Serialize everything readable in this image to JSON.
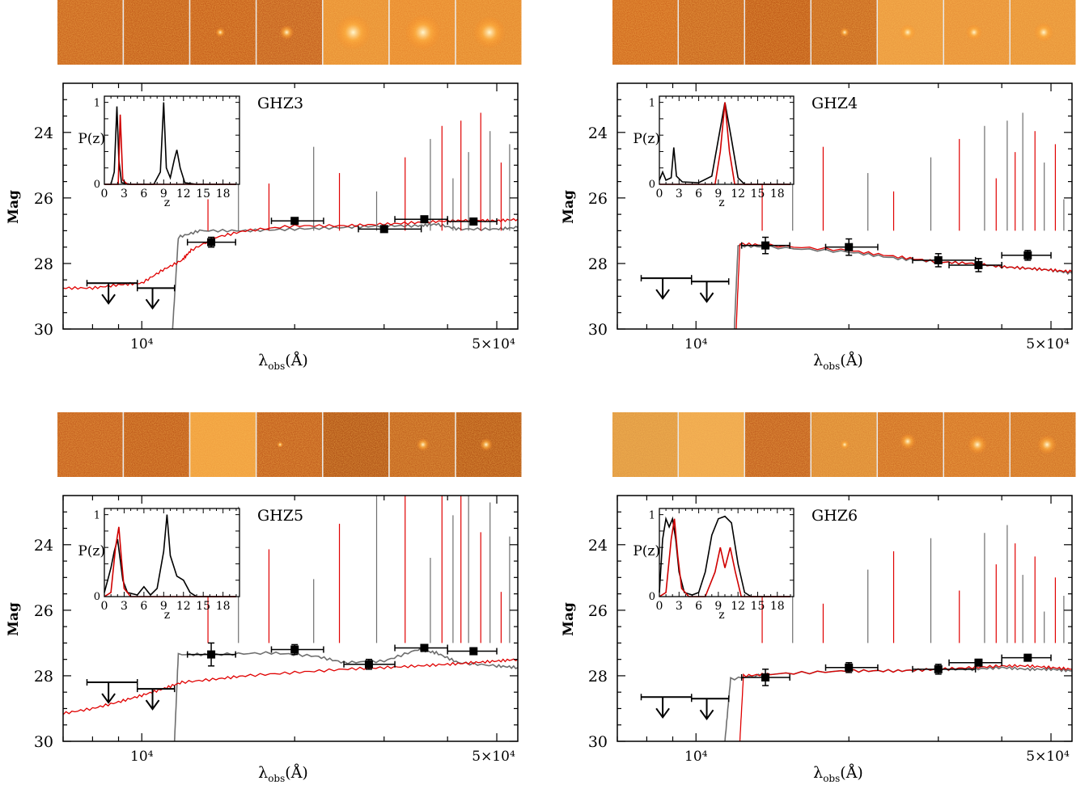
{
  "figure": {
    "y_axis_label": "Mag",
    "x_axis_label_main": "λ",
    "x_axis_label_sub": "obs",
    "x_axis_label_unit": "(Å)",
    "x_tick_labels": [
      "10⁴",
      "5×10⁴"
    ],
    "y_tick_labels": [
      "24",
      "26",
      "28",
      "30"
    ],
    "inset_y_label": "P(z)",
    "inset_x_label": "z",
    "inset_x_tick_labels": [
      "0",
      "3",
      "6",
      "9",
      "12",
      "15",
      "18"
    ],
    "inset_y_tick_labels": [
      "0",
      "1"
    ],
    "colors": {
      "data": "#000000",
      "best_fit_highz": "#e00000",
      "best_fit_lowz": "#6e6e6e",
      "pz_total": "#000000",
      "pz_highz": "#d00000"
    }
  },
  "chart_data": [
    {
      "type": "scatter",
      "title": "GHZ3",
      "xscale": "log",
      "xlim": [
        7000,
        55000
      ],
      "ylim": [
        30,
        22.5
      ],
      "yticks": [
        24,
        26,
        28,
        30
      ],
      "detections": [
        {
          "x": 13700,
          "y": 27.35,
          "xerr": [
            12300,
            15300
          ],
          "yerr": 0.15
        },
        {
          "x": 20000,
          "y": 26.7,
          "xerr": [
            18000,
            22800
          ],
          "yerr": 0.06
        },
        {
          "x": 30000,
          "y": 26.95,
          "xerr": [
            26700,
            35500
          ],
          "yerr": 0.05
        },
        {
          "x": 36000,
          "y": 26.65,
          "xerr": [
            31500,
            40000
          ],
          "yerr": 0.06
        },
        {
          "x": 45000,
          "y": 26.72,
          "xerr": [
            40000,
            50000
          ],
          "yerr": 0.08
        }
      ],
      "upper_limits": [
        {
          "x": 8600,
          "y": 28.6,
          "xerr": [
            7800,
            9800
          ]
        },
        {
          "x": 10500,
          "y": 28.75,
          "xerr": [
            9800,
            11600
          ]
        }
      ],
      "model_highz": [
        [
          7000,
          28.75
        ],
        [
          8000,
          28.75
        ],
        [
          9000,
          28.65
        ],
        [
          10000,
          28.6
        ],
        [
          11000,
          28.2
        ],
        [
          12000,
          27.9
        ],
        [
          12500,
          27.6
        ],
        [
          14000,
          27.2
        ],
        [
          16000,
          27.0
        ],
        [
          20000,
          26.85
        ],
        [
          25000,
          26.85
        ],
        [
          30000,
          26.8
        ],
        [
          35000,
          26.75
        ],
        [
          40000,
          26.7
        ],
        [
          45000,
          26.68
        ],
        [
          50000,
          26.7
        ],
        [
          55000,
          26.65
        ]
      ],
      "model_lowz": [
        [
          11500,
          30.0
        ],
        [
          11800,
          27.2
        ],
        [
          13000,
          27.0
        ],
        [
          16000,
          27.0
        ],
        [
          20000,
          26.95
        ],
        [
          25000,
          26.9
        ],
        [
          30000,
          26.85
        ],
        [
          35000,
          26.85
        ],
        [
          38000,
          26.8
        ],
        [
          42000,
          26.95
        ],
        [
          50000,
          26.95
        ],
        [
          55000,
          26.9
        ]
      ],
      "pz_total": [
        [
          0,
          0
        ],
        [
          1.0,
          0
        ],
        [
          1.5,
          0.15
        ],
        [
          1.9,
          0.95
        ],
        [
          2.2,
          0.3
        ],
        [
          2.6,
          0.02
        ],
        [
          4,
          0
        ],
        [
          7.5,
          0
        ],
        [
          8.5,
          0.15
        ],
        [
          9.0,
          1.0
        ],
        [
          9.4,
          0.2
        ],
        [
          10,
          0.08
        ],
        [
          10.6,
          0.3
        ],
        [
          11.0,
          0.42
        ],
        [
          11.5,
          0.2
        ],
        [
          12.2,
          0.02
        ],
        [
          14,
          0
        ],
        [
          20,
          0
        ]
      ],
      "pz_highz": [
        [
          0,
          0
        ],
        [
          2.1,
          0
        ],
        [
          2.4,
          0.85
        ],
        [
          2.8,
          0.05
        ],
        [
          3.5,
          0
        ],
        [
          20,
          0
        ]
      ]
    },
    {
      "type": "scatter",
      "title": "GHZ4",
      "xscale": "log",
      "xlim": [
        7000,
        55000
      ],
      "ylim": [
        30,
        22.5
      ],
      "yticks": [
        24,
        26,
        28,
        30
      ],
      "detections": [
        {
          "x": 13700,
          "y": 27.45,
          "xerr": [
            12300,
            15300
          ],
          "yerr": 0.25
        },
        {
          "x": 20000,
          "y": 27.5,
          "xerr": [
            18000,
            22800
          ],
          "yerr": 0.25
        },
        {
          "x": 30000,
          "y": 27.9,
          "xerr": [
            26700,
            35500
          ],
          "yerr": 0.2
        },
        {
          "x": 36000,
          "y": 28.05,
          "xerr": [
            31500,
            40000
          ],
          "yerr": 0.2
        },
        {
          "x": 45000,
          "y": 27.75,
          "xerr": [
            40000,
            50000
          ],
          "yerr": 0.15
        }
      ],
      "upper_limits": [
        {
          "x": 8600,
          "y": 28.45,
          "xerr": [
            7800,
            9800
          ]
        },
        {
          "x": 10500,
          "y": 28.55,
          "xerr": [
            9800,
            11600
          ]
        }
      ],
      "model_highz": [
        [
          12000,
          30.0
        ],
        [
          12200,
          27.4
        ],
        [
          14000,
          27.45
        ],
        [
          20000,
          27.6
        ],
        [
          25000,
          27.8
        ],
        [
          30000,
          27.95
        ],
        [
          35000,
          28.0
        ],
        [
          40000,
          28.1
        ],
        [
          45000,
          28.15
        ],
        [
          50000,
          28.2
        ],
        [
          55000,
          28.25
        ]
      ],
      "model_lowz": [
        [
          11900,
          30.0
        ],
        [
          12100,
          27.45
        ],
        [
          14000,
          27.5
        ],
        [
          20000,
          27.65
        ],
        [
          25000,
          27.85
        ],
        [
          30000,
          27.95
        ],
        [
          35000,
          28.0
        ],
        [
          40000,
          28.1
        ],
        [
          45000,
          28.15
        ],
        [
          50000,
          28.2
        ],
        [
          55000,
          28.3
        ]
      ],
      "pz_total": [
        [
          0,
          0.05
        ],
        [
          0.5,
          0.15
        ],
        [
          1.0,
          0.05
        ],
        [
          1.8,
          0.08
        ],
        [
          2.2,
          0.45
        ],
        [
          2.6,
          0.1
        ],
        [
          3.5,
          0.03
        ],
        [
          6,
          0.02
        ],
        [
          8,
          0.1
        ],
        [
          9,
          0.55
        ],
        [
          10,
          1.0
        ],
        [
          11,
          0.55
        ],
        [
          12,
          0.08
        ],
        [
          13,
          0
        ],
        [
          20,
          0
        ]
      ],
      "pz_highz": [
        [
          0,
          0
        ],
        [
          8.5,
          0
        ],
        [
          9.3,
          0.4
        ],
        [
          10,
          1.0
        ],
        [
          10.7,
          0.4
        ],
        [
          11.5,
          0
        ],
        [
          20,
          0
        ]
      ]
    },
    {
      "type": "scatter",
      "title": "GHZ5",
      "xscale": "log",
      "xlim": [
        7000,
        55000
      ],
      "ylim": [
        30,
        22.5
      ],
      "yticks": [
        24,
        26,
        28,
        30
      ],
      "detections": [
        {
          "x": 13700,
          "y": 27.35,
          "xerr": [
            12300,
            15300
          ],
          "yerr": 0.35
        },
        {
          "x": 20000,
          "y": 27.2,
          "xerr": [
            18000,
            22800
          ],
          "yerr": 0.15
        },
        {
          "x": 28000,
          "y": 27.65,
          "xerr": [
            25000,
            31500
          ],
          "yerr": 0.15
        },
        {
          "x": 36000,
          "y": 27.15,
          "xerr": [
            31500,
            40000
          ],
          "yerr": 0.1
        },
        {
          "x": 45000,
          "y": 27.25,
          "xerr": [
            40000,
            50000
          ],
          "yerr": 0.1
        }
      ],
      "upper_limits": [
        {
          "x": 8600,
          "y": 28.2,
          "xerr": [
            7800,
            9800
          ]
        },
        {
          "x": 10500,
          "y": 28.4,
          "xerr": [
            9800,
            11600
          ]
        }
      ],
      "model_highz": [
        [
          7000,
          29.15
        ],
        [
          8000,
          29.0
        ],
        [
          9000,
          28.8
        ],
        [
          10000,
          28.6
        ],
        [
          11000,
          28.4
        ],
        [
          12000,
          28.2
        ],
        [
          14000,
          28.1
        ],
        [
          16000,
          28.0
        ],
        [
          20000,
          27.9
        ],
        [
          25000,
          27.8
        ],
        [
          30000,
          27.75
        ],
        [
          35000,
          27.7
        ],
        [
          40000,
          27.65
        ],
        [
          45000,
          27.6
        ],
        [
          50000,
          27.55
        ],
        [
          55000,
          27.5
        ]
      ],
      "model_lowz": [
        [
          11600,
          30.0
        ],
        [
          11800,
          27.35
        ],
        [
          14000,
          27.35
        ],
        [
          18000,
          27.3
        ],
        [
          22000,
          27.4
        ],
        [
          25000,
          27.6
        ],
        [
          30000,
          27.55
        ],
        [
          35000,
          27.2
        ],
        [
          38000,
          27.3
        ],
        [
          42000,
          27.6
        ],
        [
          50000,
          27.7
        ],
        [
          55000,
          27.75
        ]
      ],
      "pz_total": [
        [
          0,
          0.05
        ],
        [
          0.5,
          0.2
        ],
        [
          1.0,
          0.35
        ],
        [
          1.5,
          0.55
        ],
        [
          2.0,
          0.7
        ],
        [
          2.4,
          0.45
        ],
        [
          2.8,
          0.2
        ],
        [
          3.5,
          0.05
        ],
        [
          5,
          0.02
        ],
        [
          6,
          0.12
        ],
        [
          7,
          0.02
        ],
        [
          8,
          0.1
        ],
        [
          9,
          0.55
        ],
        [
          9.5,
          1.0
        ],
        [
          10,
          0.5
        ],
        [
          11,
          0.25
        ],
        [
          12,
          0.2
        ],
        [
          13,
          0.05
        ],
        [
          14,
          0
        ],
        [
          20,
          0
        ]
      ],
      "pz_highz": [
        [
          0,
          0
        ],
        [
          1.0,
          0.05
        ],
        [
          1.7,
          0.6
        ],
        [
          2.2,
          0.85
        ],
        [
          2.6,
          0.45
        ],
        [
          3.0,
          0.1
        ],
        [
          4.0,
          0
        ],
        [
          20,
          0
        ]
      ]
    },
    {
      "type": "scatter",
      "title": "GHZ6",
      "xscale": "log",
      "xlim": [
        7000,
        55000
      ],
      "ylim": [
        30,
        22.5
      ],
      "yticks": [
        24,
        26,
        28,
        30
      ],
      "detections": [
        {
          "x": 13700,
          "y": 28.05,
          "xerr": [
            12300,
            15300
          ],
          "yerr": 0.25
        },
        {
          "x": 20000,
          "y": 27.75,
          "xerr": [
            18000,
            22800
          ],
          "yerr": 0.15
        },
        {
          "x": 30000,
          "y": 27.8,
          "xerr": [
            26700,
            35500
          ],
          "yerr": 0.15
        },
        {
          "x": 36000,
          "y": 27.6,
          "xerr": [
            31500,
            40000
          ],
          "yerr": 0.1
        },
        {
          "x": 45000,
          "y": 27.45,
          "xerr": [
            40000,
            50000
          ],
          "yerr": 0.1
        }
      ],
      "upper_limits": [
        {
          "x": 8600,
          "y": 28.65,
          "xerr": [
            7800,
            9800
          ]
        },
        {
          "x": 10500,
          "y": 28.7,
          "xerr": [
            9800,
            11600
          ]
        }
      ],
      "model_highz": [
        [
          12200,
          30.0
        ],
        [
          12400,
          28.0
        ],
        [
          14000,
          27.95
        ],
        [
          20000,
          27.85
        ],
        [
          25000,
          27.85
        ],
        [
          30000,
          27.8
        ],
        [
          35000,
          27.75
        ],
        [
          40000,
          27.7
        ],
        [
          45000,
          27.7
        ],
        [
          50000,
          27.75
        ],
        [
          55000,
          27.8
        ]
      ],
      "model_lowz": [
        [
          11400,
          30.0
        ],
        [
          11700,
          28.1
        ],
        [
          14000,
          27.95
        ],
        [
          20000,
          27.85
        ],
        [
          25000,
          27.85
        ],
        [
          30000,
          27.8
        ],
        [
          35000,
          27.8
        ],
        [
          40000,
          27.75
        ],
        [
          45000,
          27.8
        ],
        [
          50000,
          27.8
        ],
        [
          55000,
          27.85
        ]
      ],
      "pz_total": [
        [
          0,
          0.05
        ],
        [
          0.5,
          0.7
        ],
        [
          1.0,
          0.95
        ],
        [
          1.5,
          0.85
        ],
        [
          2.0,
          0.95
        ],
        [
          2.5,
          0.7
        ],
        [
          3.0,
          0.3
        ],
        [
          3.8,
          0.05
        ],
        [
          5,
          0.02
        ],
        [
          6,
          0.05
        ],
        [
          7,
          0.3
        ],
        [
          8,
          0.75
        ],
        [
          9,
          0.95
        ],
        [
          10,
          0.98
        ],
        [
          11,
          0.9
        ],
        [
          12,
          0.4
        ],
        [
          13,
          0.05
        ],
        [
          14,
          0
        ],
        [
          20,
          0
        ]
      ],
      "pz_highz": [
        [
          0,
          0
        ],
        [
          1.0,
          0.05
        ],
        [
          1.8,
          0.7
        ],
        [
          2.3,
          0.95
        ],
        [
          2.8,
          0.5
        ],
        [
          3.4,
          0.1
        ],
        [
          4.5,
          0
        ],
        [
          7.0,
          0
        ],
        [
          8.5,
          0.3
        ],
        [
          9.3,
          0.6
        ],
        [
          10,
          0.35
        ],
        [
          10.8,
          0.6
        ],
        [
          11.6,
          0.3
        ],
        [
          12.5,
          0
        ],
        [
          20,
          0
        ]
      ]
    }
  ]
}
